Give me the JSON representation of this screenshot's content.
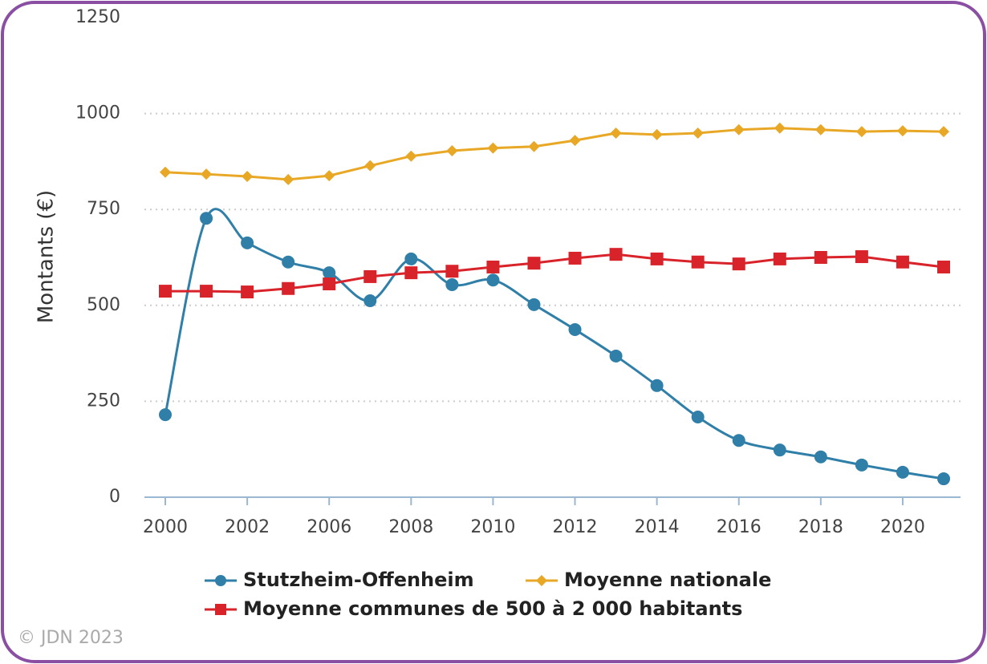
{
  "chart_data": {
    "type": "line",
    "ylabel": "Montants (€)",
    "categories": [
      "2000",
      null,
      "2002",
      null,
      "2006",
      null,
      "2008",
      null,
      "2010",
      null,
      "2012",
      null,
      "2014",
      null,
      "2016",
      null,
      "2018",
      null,
      "2020",
      null
    ],
    "series": [
      {
        "name": "Stutzheim-Offenheim",
        "color": "#2f7fa8",
        "marker": "circle",
        "smooth": true,
        "values": [
          215,
          727,
          663,
          613,
          585,
          512,
          621,
          554,
          566,
          502,
          437,
          368,
          291,
          209,
          148,
          123,
          105,
          84,
          65,
          48
        ]
      },
      {
        "name": "Moyenne nationale",
        "color": "#e8a825",
        "marker": "diamond",
        "smooth": false,
        "values": [
          847,
          842,
          836,
          828,
          838,
          864,
          889,
          903,
          910,
          914,
          930,
          949,
          945,
          949,
          958,
          962,
          958,
          953,
          955,
          953
        ]
      },
      {
        "name": "Moyenne communes de 500 à 2 000 habitants",
        "color": "#d9232a",
        "marker": "square",
        "smooth": false,
        "values": [
          537,
          537,
          535,
          544,
          556,
          575,
          585,
          589,
          600,
          610,
          623,
          633,
          621,
          613,
          608,
          621,
          625,
          627,
          613,
          600
        ]
      }
    ],
    "ylim": [
      0,
      1250
    ],
    "yticks": [
      0,
      250,
      500,
      750,
      1000,
      1250
    ],
    "grid": true,
    "legend": "bottom",
    "footer": "© JDN 2023"
  }
}
